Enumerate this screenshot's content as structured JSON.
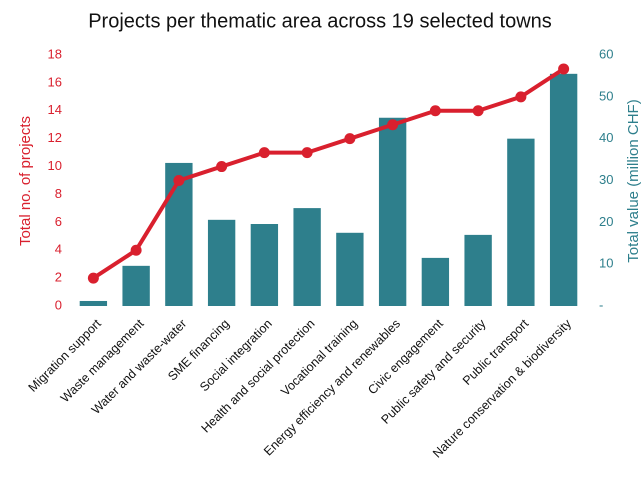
{
  "chart_data": {
    "type": "bar-line",
    "title": "Projects per thematic area across 19 selected towns",
    "ylabel": "Total no. of projects",
    "y2label": "Total value (million CHF)",
    "categories": [
      "Migration support",
      "Waste management",
      "Water and waste-water",
      "SME financing",
      "Social integration",
      "Health and social protection",
      "Vocational training",
      "Energy efficiency and renewables",
      "Civic engagement",
      "Public safety and security",
      "Public transport",
      "Nature conservation & biodiversity"
    ],
    "series": [
      {
        "type": "bar",
        "axis": "y2",
        "color": "#2e7f8c",
        "values": [
          1.2,
          9.6,
          34.2,
          20.6,
          19.6,
          23.4,
          17.5,
          45,
          11.5,
          17,
          40,
          55.5
        ]
      },
      {
        "type": "line",
        "axis": "y",
        "color": "#d9202e",
        "values": [
          2,
          4,
          9,
          10,
          11,
          11,
          12,
          13,
          14,
          14,
          15,
          17
        ]
      }
    ],
    "ylim": [
      0,
      18
    ],
    "yticks": [
      0,
      2,
      4,
      6,
      8,
      10,
      12,
      14,
      16,
      18
    ],
    "y2lim": [
      0,
      60
    ],
    "y2ticks": [
      {
        "value": 0,
        "label": "-"
      },
      10,
      20,
      30,
      40,
      50,
      60
    ]
  }
}
